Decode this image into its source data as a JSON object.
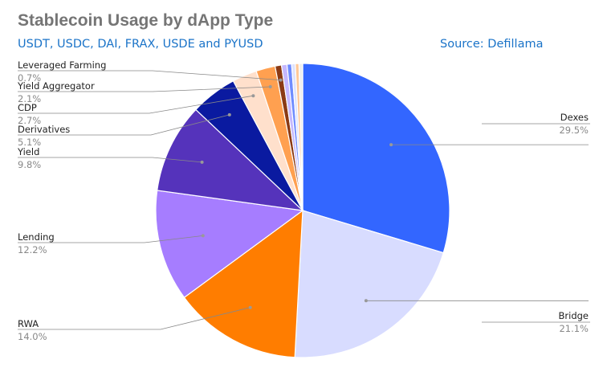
{
  "header": {
    "title": "Stablecoin Usage by dApp Type",
    "subtitle": "USDT, USDC, DAI, FRAX, USDE and PYUSD",
    "source": "Source: Defillama"
  },
  "chart_data": {
    "type": "pie",
    "title": "Stablecoin Usage by dApp Type",
    "subtitle": "USDT, USDC, DAI, FRAX, USDE and PYUSD",
    "slices": [
      {
        "name": "Dexes",
        "value": 29.5,
        "pct_label": "29.5%",
        "color": "#3366ff",
        "labeled": true
      },
      {
        "name": "Bridge",
        "value": 21.1,
        "pct_label": "21.1%",
        "color": "#d8dcff",
        "labeled": true
      },
      {
        "name": "RWA",
        "value": 14.0,
        "pct_label": "14.0%",
        "color": "#ff7d00",
        "labeled": true
      },
      {
        "name": "Lending",
        "value": 12.2,
        "pct_label": "12.2%",
        "color": "#a67dff",
        "labeled": true
      },
      {
        "name": "Yield",
        "value": 9.8,
        "pct_label": "9.8%",
        "color": "#5533bb",
        "labeled": true
      },
      {
        "name": "Derivatives",
        "value": 5.1,
        "pct_label": "5.1%",
        "color": "#0a1aa0",
        "labeled": true
      },
      {
        "name": "CDP",
        "value": 2.7,
        "pct_label": "2.7%",
        "color": "#ffe0cc",
        "labeled": true
      },
      {
        "name": "Yield Aggregator",
        "value": 2.1,
        "pct_label": "2.1%",
        "color": "#ffa050",
        "labeled": true
      },
      {
        "name": "Leveraged Farming",
        "value": 0.7,
        "pct_label": "0.7%",
        "color": "#8b3a14",
        "labeled": true
      },
      {
        "name": "",
        "value": 0.6,
        "pct_label": "",
        "color": "#c5b8ff",
        "labeled": false
      },
      {
        "name": "",
        "value": 0.5,
        "pct_label": "",
        "color": "#6f8cff",
        "labeled": false
      },
      {
        "name": "",
        "value": 0.4,
        "pct_label": "",
        "color": "#dde2ff",
        "labeled": false
      },
      {
        "name": "",
        "value": 0.4,
        "pct_label": "",
        "color": "#ffc898",
        "labeled": false
      },
      {
        "name": "",
        "value": 0.4,
        "pct_label": "",
        "color": "#eeeeee",
        "labeled": false
      }
    ],
    "legend": "none"
  }
}
